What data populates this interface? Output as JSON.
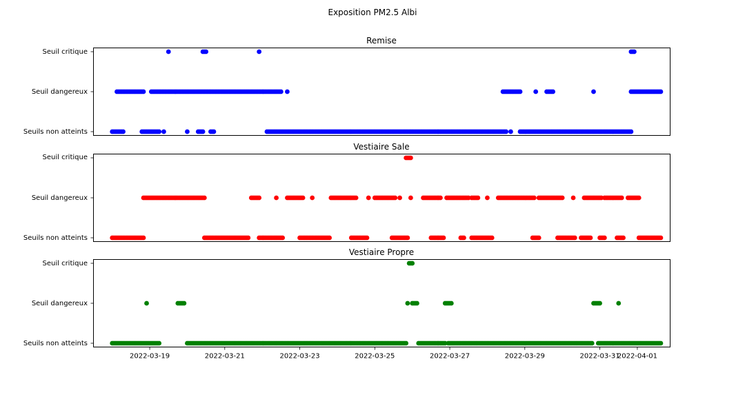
{
  "figure": {
    "suptitle": "Exposition PM2.5 Albi"
  },
  "chart_data": [
    {
      "type": "scatter",
      "title": "Remise",
      "color": "#0000ff",
      "yticklabels": [
        "Seuils non atteints",
        "Seuil dangereux",
        "Seuil critique"
      ],
      "xlim": [
        "2022-03-17T12:00",
        "2022-04-01T21:00"
      ],
      "segments": [
        {
          "level": 0,
          "start": "2022-03-18T00:00",
          "end": "2022-03-18T07:00"
        },
        {
          "level": 0,
          "start": "2022-03-18T19:00",
          "end": "2022-03-19T06:00"
        },
        {
          "level": 0,
          "start": "2022-03-19T09:00",
          "end": "2022-03-19T09:00"
        },
        {
          "level": 0,
          "start": "2022-03-20T00:00",
          "end": "2022-03-20T00:00"
        },
        {
          "level": 0,
          "start": "2022-03-20T07:00",
          "end": "2022-03-20T10:00"
        },
        {
          "level": 0,
          "start": "2022-03-20T15:00",
          "end": "2022-03-20T17:00"
        },
        {
          "level": 0,
          "start": "2022-03-22T03:00",
          "end": "2022-03-28T12:00"
        },
        {
          "level": 0,
          "start": "2022-03-28T15:00",
          "end": "2022-03-28T15:00"
        },
        {
          "level": 0,
          "start": "2022-03-28T21:00",
          "end": "2022-03-31T20:00"
        },
        {
          "level": 1,
          "start": "2022-03-18T03:00",
          "end": "2022-03-18T20:00"
        },
        {
          "level": 1,
          "start": "2022-03-19T01:00",
          "end": "2022-03-22T12:00"
        },
        {
          "level": 1,
          "start": "2022-03-22T16:00",
          "end": "2022-03-22T16:00"
        },
        {
          "level": 1,
          "start": "2022-03-28T10:00",
          "end": "2022-03-28T21:00"
        },
        {
          "level": 1,
          "start": "2022-03-29T07:00",
          "end": "2022-03-29T07:00"
        },
        {
          "level": 1,
          "start": "2022-03-29T14:00",
          "end": "2022-03-29T18:00"
        },
        {
          "level": 1,
          "start": "2022-03-30T20:00",
          "end": "2022-03-30T20:00"
        },
        {
          "level": 1,
          "start": "2022-03-31T20:00",
          "end": "2022-04-01T15:00"
        },
        {
          "level": 2,
          "start": "2022-03-19T12:00",
          "end": "2022-03-19T12:00"
        },
        {
          "level": 2,
          "start": "2022-03-20T10:00",
          "end": "2022-03-20T12:00"
        },
        {
          "level": 2,
          "start": "2022-03-21T22:00",
          "end": "2022-03-21T22:00"
        },
        {
          "level": 2,
          "start": "2022-03-31T20:00",
          "end": "2022-03-31T22:00"
        }
      ]
    },
    {
      "type": "scatter",
      "title": "Vestiaire Sale",
      "color": "#ff0000",
      "yticklabels": [
        "Seuils non atteints",
        "Seuil dangereux",
        "Seuil critique"
      ],
      "xlim": [
        "2022-03-17T12:00",
        "2022-04-01T21:00"
      ],
      "segments": [
        {
          "level": 0,
          "start": "2022-03-18T00:00",
          "end": "2022-03-18T20:00"
        },
        {
          "level": 0,
          "start": "2022-03-20T11:00",
          "end": "2022-03-21T15:00"
        },
        {
          "level": 0,
          "start": "2022-03-21T22:00",
          "end": "2022-03-22T13:00"
        },
        {
          "level": 0,
          "start": "2022-03-23T00:00",
          "end": "2022-03-23T19:00"
        },
        {
          "level": 0,
          "start": "2022-03-24T09:00",
          "end": "2022-03-24T19:00"
        },
        {
          "level": 0,
          "start": "2022-03-25T11:00",
          "end": "2022-03-25T21:00"
        },
        {
          "level": 0,
          "start": "2022-03-26T12:00",
          "end": "2022-03-26T20:00"
        },
        {
          "level": 0,
          "start": "2022-03-27T07:00",
          "end": "2022-03-27T09:00"
        },
        {
          "level": 0,
          "start": "2022-03-27T14:00",
          "end": "2022-03-28T03:00"
        },
        {
          "level": 0,
          "start": "2022-03-29T05:00",
          "end": "2022-03-29T09:00"
        },
        {
          "level": 0,
          "start": "2022-03-29T21:00",
          "end": "2022-03-30T08:00"
        },
        {
          "level": 0,
          "start": "2022-03-30T12:00",
          "end": "2022-03-30T18:00"
        },
        {
          "level": 0,
          "start": "2022-03-31T00:00",
          "end": "2022-03-31T03:00"
        },
        {
          "level": 0,
          "start": "2022-03-31T11:00",
          "end": "2022-03-31T15:00"
        },
        {
          "level": 0,
          "start": "2022-04-01T01:00",
          "end": "2022-04-01T15:00"
        },
        {
          "level": 1,
          "start": "2022-03-18T20:00",
          "end": "2022-03-20T11:00"
        },
        {
          "level": 1,
          "start": "2022-03-21T17:00",
          "end": "2022-03-21T22:00"
        },
        {
          "level": 1,
          "start": "2022-03-22T09:00",
          "end": "2022-03-22T09:00"
        },
        {
          "level": 1,
          "start": "2022-03-22T16:00",
          "end": "2022-03-23T02:00"
        },
        {
          "level": 1,
          "start": "2022-03-23T08:00",
          "end": "2022-03-23T08:00"
        },
        {
          "level": 1,
          "start": "2022-03-23T20:00",
          "end": "2022-03-24T12:00"
        },
        {
          "level": 1,
          "start": "2022-03-24T20:00",
          "end": "2022-03-24T20:00"
        },
        {
          "level": 1,
          "start": "2022-03-25T00:00",
          "end": "2022-03-25T13:00"
        },
        {
          "level": 1,
          "start": "2022-03-25T16:00",
          "end": "2022-03-25T16:00"
        },
        {
          "level": 1,
          "start": "2022-03-25T23:00",
          "end": "2022-03-25T23:00"
        },
        {
          "level": 1,
          "start": "2022-03-26T07:00",
          "end": "2022-03-26T18:00"
        },
        {
          "level": 1,
          "start": "2022-03-26T22:00",
          "end": "2022-03-27T12:00"
        },
        {
          "level": 1,
          "start": "2022-03-27T14:00",
          "end": "2022-03-27T18:00"
        },
        {
          "level": 1,
          "start": "2022-03-28T00:00",
          "end": "2022-03-28T00:00"
        },
        {
          "level": 1,
          "start": "2022-03-28T07:00",
          "end": "2022-03-29T06:00"
        },
        {
          "level": 1,
          "start": "2022-03-29T09:00",
          "end": "2022-03-30T00:00"
        },
        {
          "level": 1,
          "start": "2022-03-30T07:00",
          "end": "2022-03-30T07:00"
        },
        {
          "level": 1,
          "start": "2022-03-30T14:00",
          "end": "2022-03-31T01:00"
        },
        {
          "level": 1,
          "start": "2022-03-31T03:00",
          "end": "2022-03-31T14:00"
        },
        {
          "level": 1,
          "start": "2022-03-31T18:00",
          "end": "2022-04-01T01:00"
        },
        {
          "level": 2,
          "start": "2022-03-25T20:00",
          "end": "2022-03-25T23:00"
        }
      ]
    },
    {
      "type": "scatter",
      "title": "Vestiaire Propre",
      "color": "#008000",
      "yticklabels": [
        "Seuils non atteints",
        "Seuil dangereux",
        "Seuil critique"
      ],
      "xlim": [
        "2022-03-17T12:00",
        "2022-04-01T21:00"
      ],
      "xticks": [
        "2022-03-19",
        "2022-03-21",
        "2022-03-23",
        "2022-03-25",
        "2022-03-27",
        "2022-03-29",
        "2022-03-31",
        "2022-04-01"
      ],
      "segments": [
        {
          "level": 0,
          "start": "2022-03-18T00:00",
          "end": "2022-03-19T06:00"
        },
        {
          "level": 0,
          "start": "2022-03-20T00:00",
          "end": "2022-03-25T20:00"
        },
        {
          "level": 0,
          "start": "2022-03-26T04:00",
          "end": "2022-03-26T21:00"
        },
        {
          "level": 0,
          "start": "2022-03-26T23:00",
          "end": "2022-03-30T19:00"
        },
        {
          "level": 0,
          "start": "2022-03-30T23:00",
          "end": "2022-03-31T11:00"
        },
        {
          "level": 0,
          "start": "2022-03-31T12:00",
          "end": "2022-04-01T15:00"
        },
        {
          "level": 1,
          "start": "2022-03-18T22:00",
          "end": "2022-03-18T22:00"
        },
        {
          "level": 1,
          "start": "2022-03-19T18:00",
          "end": "2022-03-19T22:00"
        },
        {
          "level": 1,
          "start": "2022-03-25T21:00",
          "end": "2022-03-25T21:00"
        },
        {
          "level": 1,
          "start": "2022-03-26T00:00",
          "end": "2022-03-26T03:00"
        },
        {
          "level": 1,
          "start": "2022-03-26T21:00",
          "end": "2022-03-27T01:00"
        },
        {
          "level": 1,
          "start": "2022-03-30T20:00",
          "end": "2022-03-31T00:00"
        },
        {
          "level": 1,
          "start": "2022-03-31T12:00",
          "end": "2022-03-31T12:00"
        },
        {
          "level": 2,
          "start": "2022-03-25T22:00",
          "end": "2022-03-26T00:00"
        }
      ]
    }
  ]
}
